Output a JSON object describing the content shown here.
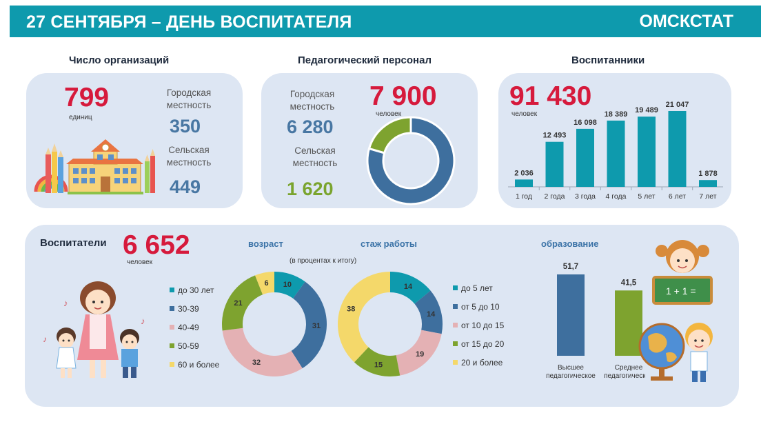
{
  "header": {
    "title": "27 СЕНТЯБРЯ – ДЕНЬ ВОСПИТАТЕЛЯ",
    "brand": "ОМСКСТАТ"
  },
  "organizations": {
    "title": "Число организаций",
    "total": "799",
    "unit": "единиц",
    "urban_label": "Городская местность",
    "urban_value": "350",
    "rural_label": "Сельская местность",
    "rural_value": "449"
  },
  "staff": {
    "title": "Педагогический персонал",
    "total": "7 900",
    "unit": "человек",
    "urban_label": "Городская местность",
    "urban_value": "6 280",
    "rural_label": "Сельская местность",
    "rural_value": "1 620"
  },
  "pupils": {
    "title": "Воспитанники",
    "total": "91 430",
    "unit": "человек"
  },
  "teachers": {
    "title": "Воспитатели",
    "total": "6 652",
    "unit": "человек",
    "note": "(в процентах к итогу)"
  },
  "colors": {
    "teal": "#0e9aad",
    "blue": "#3e6f9e",
    "pink": "#e4b1b4",
    "green": "#7ea32f",
    "yellow": "#f4d86a",
    "red": "#d61a3c"
  },
  "chart_data": [
    {
      "type": "pie",
      "name": "staff-donut",
      "categories": [
        "Городская местность",
        "Сельская местность"
      ],
      "values": [
        6280,
        1620
      ],
      "colors": [
        "#3e6f9e",
        "#7ea32f"
      ]
    },
    {
      "type": "bar",
      "name": "pupils-by-age",
      "categories": [
        "1 год",
        "2 года",
        "3 года",
        "4 года",
        "5 лет",
        "6 лет",
        "7 лет"
      ],
      "values": [
        2036,
        12493,
        16098,
        18389,
        19489,
        21047,
        1878
      ],
      "value_labels": [
        "2 036",
        "12 493",
        "16 098",
        "18 389",
        "19 489",
        "21 047",
        "1 878"
      ],
      "color": "#0e9aad"
    },
    {
      "type": "pie",
      "name": "age-donut",
      "title": "возраст",
      "categories": [
        "до 30 лет",
        "30-39",
        "40-49",
        "50-59",
        "60 и более"
      ],
      "values": [
        10,
        31,
        32,
        21,
        6
      ],
      "colors": [
        "#0e9aad",
        "#3e6f9e",
        "#e4b1b4",
        "#7ea32f",
        "#f4d86a"
      ]
    },
    {
      "type": "pie",
      "name": "experience-donut",
      "title": "стаж работы",
      "categories": [
        "до 5 лет",
        "от 5 до 10",
        "от 10 до 15",
        "от 15 до 20",
        "20 и более"
      ],
      "values": [
        14,
        14,
        19,
        15,
        38
      ],
      "colors": [
        "#0e9aad",
        "#3e6f9e",
        "#e4b1b4",
        "#7ea32f",
        "#f4d86a"
      ]
    },
    {
      "type": "bar",
      "name": "education",
      "title": "образование",
      "categories": [
        "Высшее педагогическое",
        "Среднее педагогическое"
      ],
      "values": [
        51.7,
        41.5
      ],
      "value_labels": [
        "51,7",
        "41,5"
      ],
      "colors": [
        "#3e6f9e",
        "#7ea32f"
      ]
    }
  ]
}
